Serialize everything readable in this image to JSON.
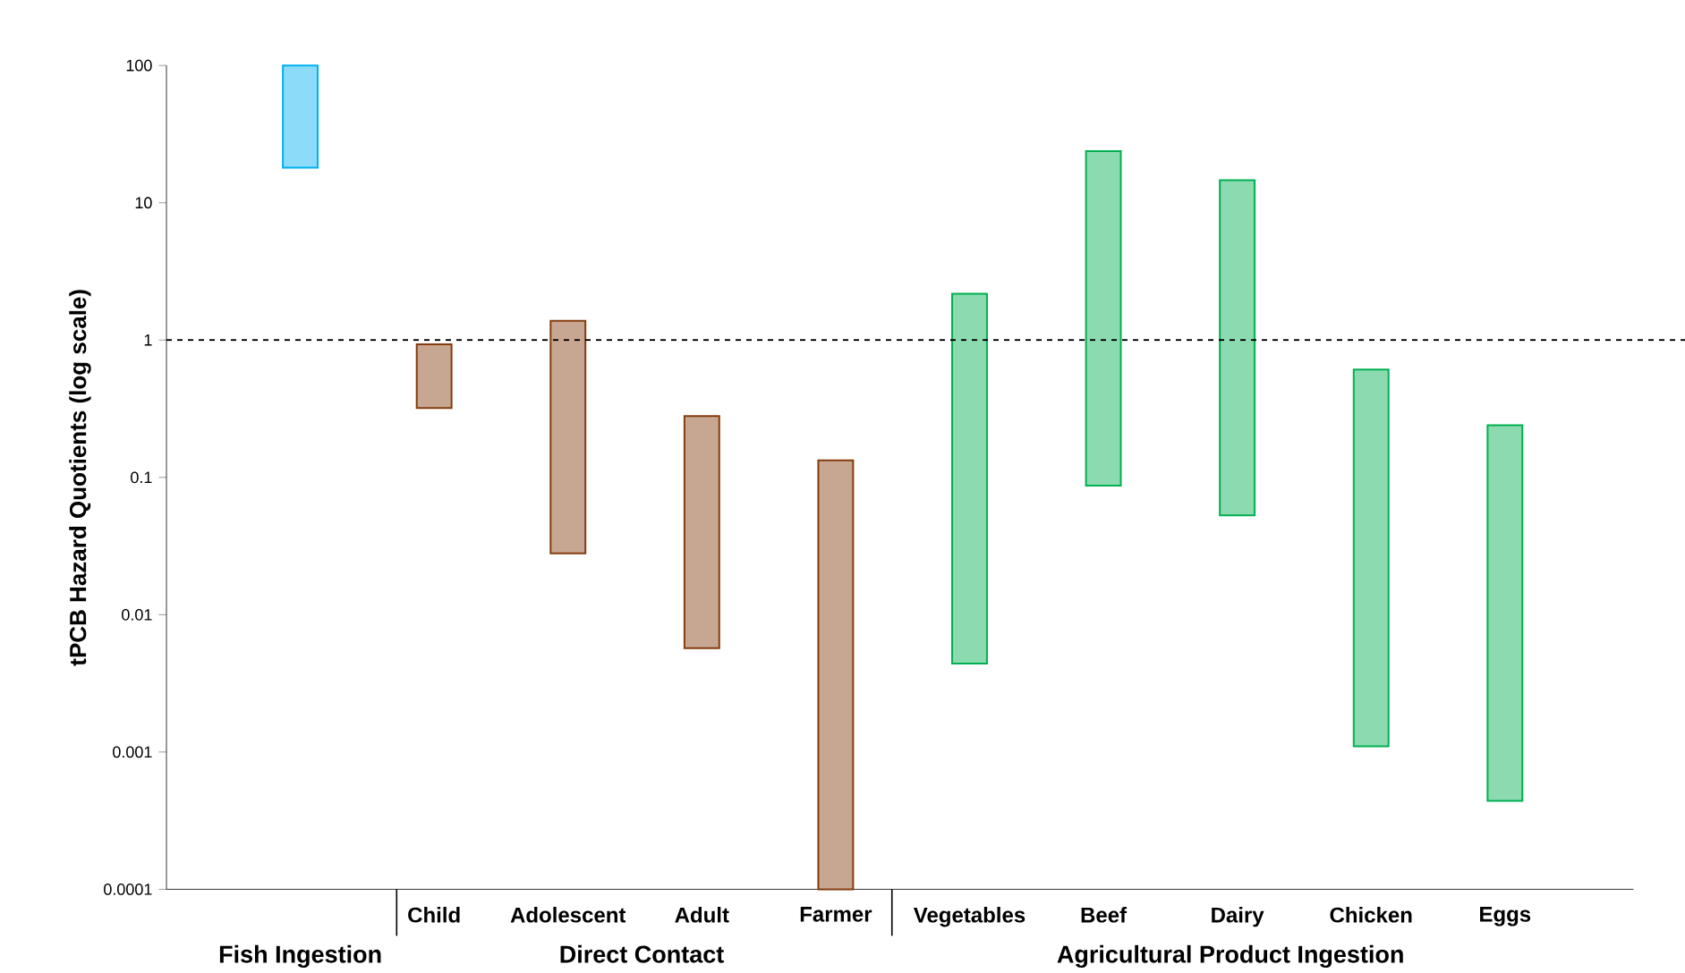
{
  "chart_data": {
    "type": "bar",
    "ylabel": "tPCB Hazard Quotients (log scale)",
    "categories": [
      null,
      "Child",
      "Adolescent",
      "Adult",
      "Farmer",
      "Vegetables",
      "Beef",
      "Dairy",
      "Chicken",
      "Eggs"
    ],
    "base": [
      18,
      0.32,
      0.028,
      0.0057,
      0.0001,
      0.0044,
      0.087,
      0.053,
      0.0011,
      0.00044
    ],
    "values": [
      82,
      0.61,
      1.352,
      0.2743,
      0.1329,
      2.1656,
      23.713,
      14.547,
      0.6089,
      0.23956
    ],
    "colors": [
      "#00b0f0",
      "#843c0c",
      "#843c0c",
      "#843c0c",
      "#843c0c",
      "#00b050",
      "#00b050",
      "#00b050",
      "#00b050",
      "#00b050"
    ],
    "log": true,
    "ylim": [
      0.0001,
      100
    ],
    "yticks": [
      0.0001,
      0.001,
      0.01,
      0.1,
      1,
      10,
      100
    ],
    "ref_lines": [
      {
        "axis": "y",
        "value": 1,
        "line_style": "dashed",
        "color": "#000000"
      }
    ],
    "annotations": [
      "Fish Ingestion",
      "Direct Contact",
      "Agricultural Product Ingestion"
    ]
  }
}
